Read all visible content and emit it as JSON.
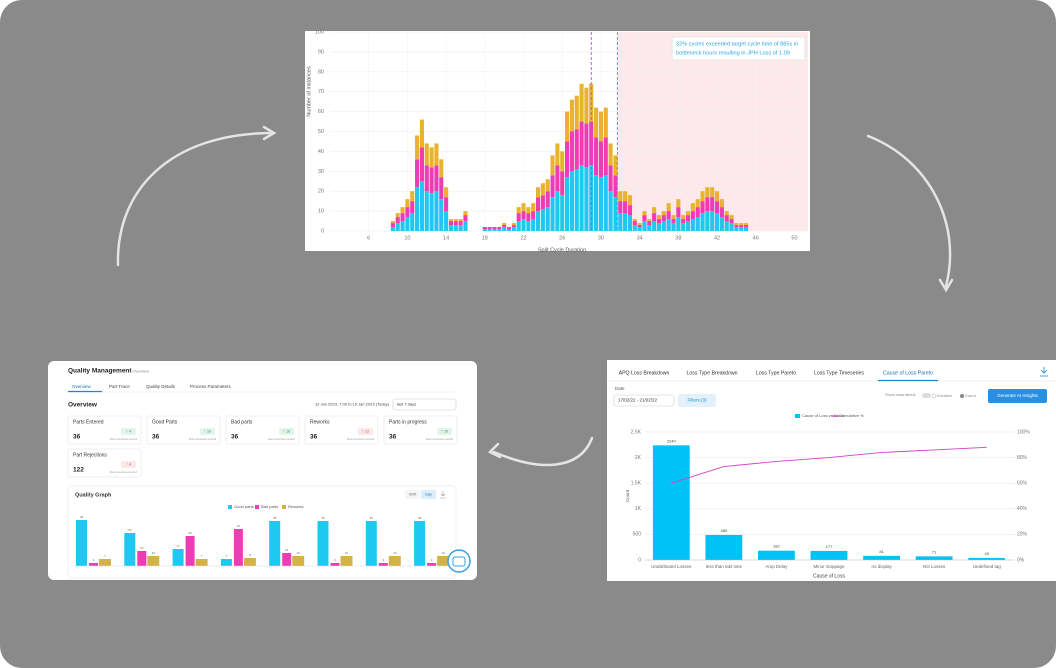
{
  "chart_data": [
    {
      "type": "histogram",
      "ylabel": "Number of instances",
      "xlabel": "Split Cycle Duration",
      "annotation": [
        "32% cycles exceeded target cycle time of 885s in",
        "bottleneck hours resulting in JPH Loss of 1.09"
      ],
      "xlim": [
        2,
        51.4
      ],
      "ylim": [
        0,
        100
      ],
      "xticks": [
        6,
        10,
        14,
        18,
        22,
        26,
        30,
        34,
        38,
        42,
        46,
        50
      ],
      "yticks": [
        0,
        10,
        20,
        30,
        40,
        50,
        60,
        70,
        80,
        90,
        100
      ],
      "grid": true,
      "shaded_from": 31.7,
      "shaded_color": "#fde9ec",
      "reference_lines": [
        {
          "x": 29,
          "color": "#9b59e0"
        },
        {
          "x": 31.7,
          "color": "#3aa0e0"
        }
      ],
      "x": [
        8.5,
        9,
        9.5,
        10,
        10.5,
        11,
        11.5,
        12,
        12.5,
        13,
        13.5,
        14,
        14.5,
        15,
        15.5,
        16,
        16.5,
        17,
        17.5,
        18,
        18.5,
        19,
        19.5,
        20,
        20.5,
        21,
        21.5,
        22,
        22.5,
        23,
        23.5,
        24,
        24.5,
        25,
        25.5,
        26,
        26.5,
        27,
        27.5,
        28,
        28.5,
        29,
        29.5,
        30,
        30.5,
        31,
        31.5,
        32,
        32.5,
        33,
        33.5,
        34,
        34.5,
        35,
        35.5,
        36,
        36.5,
        37,
        37.5,
        38,
        38.5,
        39,
        39.5,
        40,
        40.5,
        41,
        41.5,
        42,
        42.5,
        43,
        43.5,
        44,
        44.5,
        45
      ],
      "series": [
        {
          "color": "#1ec8f0",
          "values": [
            2,
            4,
            5,
            7,
            9,
            22,
            25,
            20,
            19,
            20,
            16,
            10,
            3,
            3,
            3,
            5,
            0,
            0,
            0,
            1,
            1,
            1,
            1,
            2,
            1,
            2,
            5,
            6,
            5,
            6,
            10,
            11,
            12,
            17,
            20,
            18,
            27,
            30,
            31,
            33,
            32,
            33,
            28,
            27,
            28,
            20,
            17,
            9,
            9,
            8,
            3,
            2,
            5,
            3,
            5,
            4,
            5,
            6,
            4,
            7,
            4,
            5,
            6,
            7,
            9,
            10,
            10,
            9,
            7,
            5,
            4,
            2,
            2,
            2
          ]
        },
        {
          "color": "#f03cb4",
          "values": [
            2,
            3,
            4,
            5,
            6,
            14,
            17,
            13,
            13,
            13,
            11,
            7,
            2,
            2,
            2,
            3,
            0,
            0,
            0,
            1,
            1,
            1,
            1,
            1,
            1,
            1,
            4,
            4,
            4,
            4,
            7,
            7,
            8,
            11,
            13,
            12,
            18,
            20,
            20,
            22,
            22,
            22,
            19,
            18,
            19,
            13,
            11,
            6,
            6,
            5,
            2,
            1,
            3,
            2,
            4,
            2,
            3,
            4,
            2,
            5,
            2,
            3,
            4,
            5,
            6,
            7,
            7,
            6,
            5,
            3,
            2,
            1,
            1,
            1
          ]
        },
        {
          "color": "#e8b430",
          "values": [
            1,
            2,
            3,
            4,
            5,
            12,
            14,
            11,
            10,
            11,
            9,
            5,
            1,
            1,
            1,
            2,
            0,
            0,
            0,
            0,
            0,
            0,
            0,
            1,
            0,
            1,
            3,
            4,
            3,
            4,
            5,
            6,
            6,
            10,
            11,
            10,
            15,
            16,
            17,
            19,
            18,
            19,
            15,
            15,
            15,
            11,
            10,
            5,
            5,
            5,
            1,
            1,
            2,
            1,
            3,
            2,
            2,
            4,
            2,
            4,
            2,
            2,
            4,
            4,
            5,
            5,
            5,
            5,
            4,
            2,
            2,
            1,
            1,
            1
          ]
        }
      ]
    },
    {
      "type": "pareto",
      "ylabel": "Count",
      "xlabel": "Cause of Loss",
      "categories": [
        "Unattributed Losses",
        "less than takt time",
        "Amp Delay",
        "Minor stoppage",
        "no display",
        "NO Losses",
        "Undefined tag"
      ],
      "ylim": [
        0,
        2500
      ],
      "yticks": [
        0,
        500,
        {
          "value": 1000,
          "label": "1K"
        },
        {
          "value": 1500,
          "label": "1.5K"
        },
        {
          "value": 2000,
          "label": "2K"
        },
        {
          "value": 2500,
          "label": "2.5K"
        }
      ],
      "y2lim": [
        0,
        100
      ],
      "y2ticks": [
        {
          "value": 0,
          "label": "0%"
        },
        {
          "value": 20,
          "label": "20%"
        },
        {
          "value": 40,
          "label": "40%"
        },
        {
          "value": 60,
          "label": "60%"
        },
        {
          "value": 80,
          "label": "80%"
        },
        {
          "value": 100,
          "label": "100%"
        }
      ],
      "grid": true,
      "series": [
        {
          "name": "Cause of Loss vs Count",
          "color": "#00c2f5",
          "values": [
            2240,
            489,
            182,
            177,
            81,
            71,
            40
          ]
        },
        {
          "name": "Cumulative %",
          "color": "#d63fc6",
          "axis": "y2",
          "values": [
            60,
            73,
            77,
            80,
            84,
            86,
            88
          ]
        }
      ]
    },
    {
      "type": "bar",
      "title": "Quality Graph",
      "categories": [
        null,
        null,
        null,
        null,
        null,
        null,
        null,
        null
      ],
      "series": [
        {
          "name": "Good parts",
          "color": "#1ec8f0",
          "values": [
            46,
            33,
            17,
            7,
            45,
            45,
            45,
            45
          ]
        },
        {
          "name": "Bad parts",
          "color": "#f03cb4",
          "values": [
            3,
            15,
            30,
            37,
            13,
            3,
            3,
            3
          ]
        },
        {
          "name": "Reworks",
          "color": "#d4b24a",
          "values": [
            7,
            10,
            7,
            8,
            10,
            10,
            10,
            10
          ]
        }
      ]
    }
  ],
  "pareto_panel": {
    "tabs": [
      "APQ Loss Breakdown",
      "Loss Type Breakdown",
      "Loss Type Pareto",
      "Loss Type Timeseries",
      "Cause of Loss Pareto"
    ],
    "date_label": "Date",
    "date_range": "17/02/22 - 21/02/22",
    "filters": "Filters (3)",
    "show_data_labels": "Show data labels",
    "duration": "Duration",
    "count": "Count",
    "ai_button": "Generate AI Insights"
  },
  "quality_management": {
    "title": "Quality Management",
    "breadcrumb": "> Overview",
    "tabs": [
      "Overview",
      "Part Trace",
      "Quality Details",
      "Process Parameters"
    ],
    "section": "Overview",
    "date_range": "12 Jan 2023, 7:00 to 15 Jan 2023 (Today)",
    "period": "last 7 days",
    "kpis": [
      {
        "label": "Parts Entered",
        "value": 36,
        "change": "↑ 4",
        "change_color": "#1aa35a",
        "subtext": "than previous period"
      },
      {
        "label": "Good Parts",
        "value": 36,
        "change": "↑ 10",
        "change_color": "#1aa35a",
        "subtext": "than previous period"
      },
      {
        "label": "Bad parts",
        "value": 36,
        "change": "↑ 10",
        "change_color": "#1aa35a",
        "subtext": "than previous period"
      },
      {
        "label": "Reworks",
        "value": 36,
        "change": "↑ 12",
        "change_color": "#e04a4a",
        "subtext": "than previous period"
      },
      {
        "label": "Parts in progress",
        "value": 36,
        "change": "↑ 10",
        "change_color": "#1aa35a",
        "subtext": "than previous period"
      },
      {
        "label": "Part Rejections",
        "value": 122,
        "change": "↑ 4",
        "change_color": "#e04a4a",
        "subtext": "than previous period"
      }
    ],
    "toggles": [
      "Shift",
      "Day"
    ]
  }
}
